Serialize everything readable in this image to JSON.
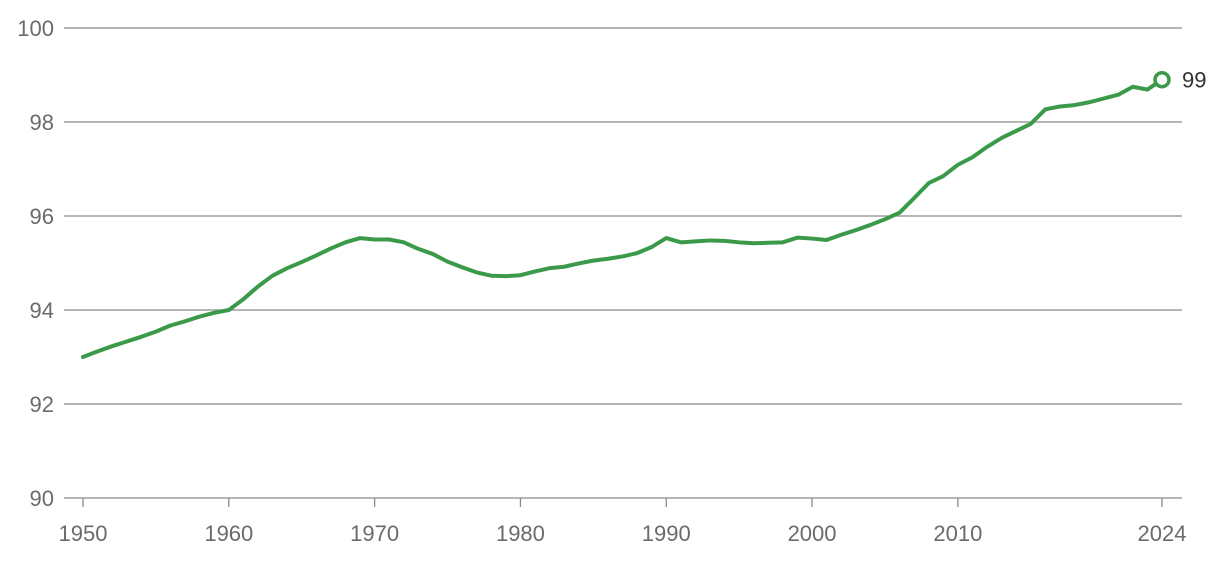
{
  "colors": {
    "series": "#3a9a4a",
    "grid": "#8a8a8a",
    "axis": "#8a8a8a",
    "tick_text": "#6b6b6b",
    "end_text": "#333333"
  },
  "chart_data": {
    "type": "line",
    "title": "",
    "xlabel": "",
    "ylabel": "",
    "xlim": [
      1950,
      2024
    ],
    "ylim": [
      90,
      100
    ],
    "grid": true,
    "legend": "none",
    "y_ticks": [
      "90",
      "92",
      "94",
      "96",
      "98",
      "100"
    ],
    "x_ticks": [
      "1950",
      "1960",
      "1970",
      "1980",
      "1990",
      "2000",
      "2010",
      "2024"
    ],
    "end_label": "99",
    "series": [
      {
        "x": [
          1950,
          1951,
          1952,
          1953,
          1954,
          1955,
          1956,
          1957,
          1958,
          1959,
          1960,
          1961,
          1962,
          1963,
          1964,
          1965,
          1966,
          1967,
          1968,
          1969,
          1970,
          1971,
          1972,
          1973,
          1974,
          1975,
          1976,
          1977,
          1978,
          1979,
          1980,
          1981,
          1982,
          1983,
          1984,
          1985,
          1986,
          1987,
          1988,
          1989,
          1990,
          1991,
          1992,
          1993,
          1994,
          1995,
          1996,
          1997,
          1998,
          1999,
          2000,
          2001,
          2002,
          2003,
          2004,
          2005,
          2006,
          2007,
          2008,
          2009,
          2010,
          2011,
          2012,
          2013,
          2014,
          2015,
          2016,
          2017,
          2018,
          2019,
          2020,
          2021,
          2022,
          2023,
          2024
        ],
        "y": [
          93.0,
          93.12,
          93.23,
          93.33,
          93.43,
          93.54,
          93.67,
          93.76,
          93.86,
          93.94,
          94.0,
          94.23,
          94.5,
          94.73,
          94.89,
          95.02,
          95.16,
          95.31,
          95.44,
          95.53,
          95.5,
          95.5,
          95.44,
          95.3,
          95.19,
          95.03,
          94.91,
          94.8,
          94.73,
          94.72,
          94.74,
          94.82,
          94.89,
          94.92,
          94.99,
          95.05,
          95.09,
          95.14,
          95.21,
          95.34,
          95.53,
          95.44,
          95.46,
          95.48,
          95.47,
          95.44,
          95.42,
          95.43,
          95.44,
          95.54,
          95.52,
          95.49,
          95.6,
          95.7,
          95.81,
          95.93,
          96.07,
          96.38,
          96.7,
          96.85,
          97.09,
          97.25,
          97.47,
          97.66,
          97.81,
          97.96,
          98.27,
          98.33,
          98.36,
          98.42,
          98.5,
          98.58,
          98.75,
          98.69,
          98.9
        ]
      }
    ]
  }
}
